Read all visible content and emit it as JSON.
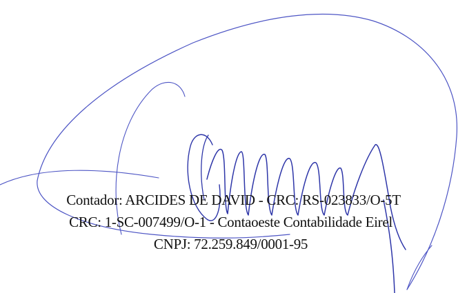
{
  "stamp": {
    "line1": "Contador: ARCIDES DE DAVID - CRC: RS-023833/O-5T",
    "line2": "CRC: 1-SC-007499/O-1 - Contaoeste Contabilidade Eirel",
    "line3": "CNPJ: 72.259.849/0001-95"
  },
  "signature": {
    "ink_color": "#4c54c4",
    "ink_color_dark": "#2d35a8"
  }
}
